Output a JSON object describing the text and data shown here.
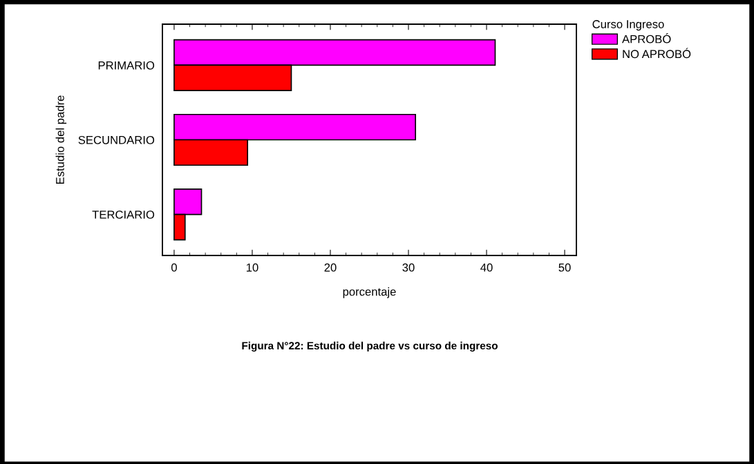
{
  "chart_data": {
    "type": "bar",
    "orientation": "horizontal",
    "categories": [
      "PRIMARIO",
      "SECUNDARIO",
      "TERCIARIO"
    ],
    "series": [
      {
        "name": "APROBÓ",
        "color": "#ff00ff",
        "values": [
          41.1,
          30.9,
          3.5
        ]
      },
      {
        "name": "NO APROBÓ",
        "color": "#ff0000",
        "values": [
          15.0,
          9.4,
          1.4
        ]
      }
    ],
    "xlim": [
      -1.5,
      51.5
    ],
    "xticks": [
      0,
      10,
      20,
      30,
      40,
      50
    ],
    "xlabel": "porcentaje",
    "ylabel": "Estudio del padre",
    "legend_title": "Curso Ingreso",
    "legend": "top right",
    "grid": false,
    "annotations": [
      "Figura N°22: Estudio del padre vs curso de ingreso"
    ]
  }
}
